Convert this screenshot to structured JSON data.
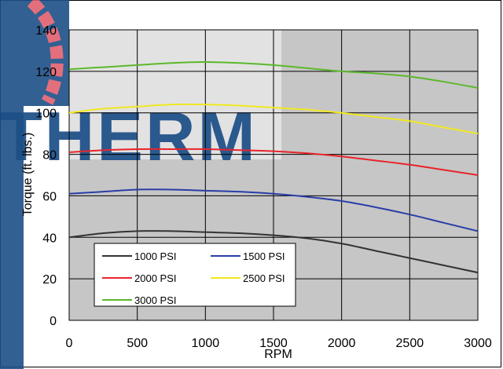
{
  "chart_data": {
    "type": "line",
    "title": "",
    "xlabel": "RPM",
    "ylabel": "Torque (ft. lbs.)",
    "xlim": [
      0,
      3000
    ],
    "ylim": [
      0,
      140
    ],
    "x_ticks": [
      "0",
      "500",
      "1000",
      "1500",
      "2000",
      "2500",
      "3000"
    ],
    "y_ticks": [
      "0",
      "20",
      "40",
      "60",
      "80",
      "100",
      "120",
      "140"
    ],
    "grid": true,
    "legend_position": "bottom-left",
    "x": [
      0,
      250,
      500,
      750,
      1000,
      1250,
      1500,
      1750,
      2000,
      2250,
      2500,
      2750,
      3000
    ],
    "series": [
      {
        "name": "1000 PSI",
        "color": "#333333",
        "values": [
          40,
          42,
          43,
          43,
          42.5,
          42,
          41,
          39.5,
          37,
          33.5,
          30,
          26.5,
          23
        ]
      },
      {
        "name": "1500 PSI",
        "color": "#2a3ea6",
        "values": [
          61,
          62,
          63,
          63,
          62.5,
          62,
          61,
          59.5,
          57.5,
          54.5,
          51,
          47,
          43
        ]
      },
      {
        "name": "2000 PSI",
        "color": "#e8242a",
        "values": [
          81,
          82,
          82.5,
          82.5,
          82.5,
          82,
          81.5,
          80.5,
          79,
          77,
          75,
          72.5,
          70
        ]
      },
      {
        "name": "2500 PSI",
        "color": "#f0e820",
        "values": [
          100,
          102,
          103,
          104,
          104,
          103.5,
          102.5,
          101.5,
          100,
          98,
          96,
          93,
          90
        ]
      },
      {
        "name": "3000 PSI",
        "color": "#5cb82c",
        "values": [
          121,
          122,
          123,
          124,
          124.5,
          124,
          123,
          121.5,
          120,
          119,
          117.5,
          115,
          112
        ]
      }
    ],
    "watermark_text": "THERM",
    "colors": {
      "plot_background": "#c6c6c6",
      "plot_highlight": "#e2e2e2",
      "grid": "#000000",
      "watermark": "#1d4f87",
      "watermark_accent": "#e06070"
    }
  }
}
